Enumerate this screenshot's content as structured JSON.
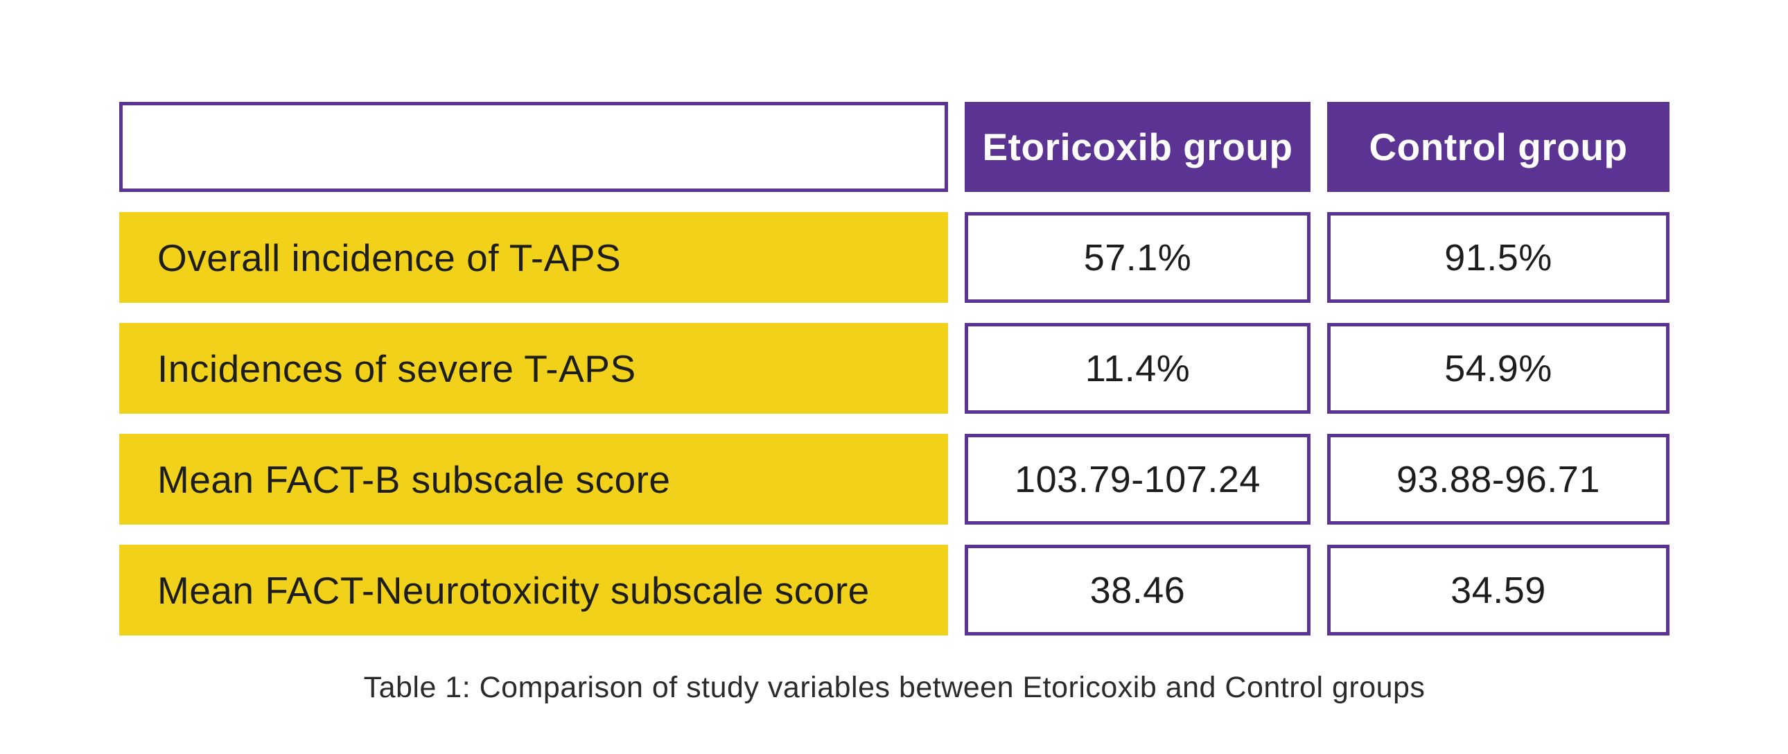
{
  "chart_data": {
    "type": "table",
    "title": "Table 1: Comparison of study variables between Etoricoxib and Control groups",
    "columns": [
      "",
      "Etoricoxib group",
      "Control group"
    ],
    "rows": [
      [
        "Overall incidence of T-APS",
        "57.1%",
        "91.5%"
      ],
      [
        "Incidences of severe T-APS",
        "11.4%",
        "54.9%"
      ],
      [
        "Mean FACT-B subscale score",
        "103.79-107.24",
        "93.88-96.71"
      ],
      [
        "Mean FACT-Neurotoxicity subscale score",
        "38.46",
        "34.59"
      ]
    ],
    "layout_hints": {
      "header_style": "white bold text on purple fill",
      "row_label_style": "black text on yellow fill, left aligned",
      "value_style": "black text in white box with purple border, centered",
      "caption_position": "centered below table"
    }
  },
  "header": {
    "corner": "",
    "etoricoxib": "Etoricoxib group",
    "control": "Control group"
  },
  "rows": [
    {
      "label": "Overall incidence of T-APS",
      "etoricoxib": "57.1%",
      "control": "91.5%"
    },
    {
      "label": "Incidences of severe T-APS",
      "etoricoxib": "11.4%",
      "control": "54.9%"
    },
    {
      "label": "Mean FACT-B subscale score",
      "etoricoxib": "103.79-107.24",
      "control": "93.88-96.71"
    },
    {
      "label": "Mean FACT-Neurotoxicity subscale score",
      "etoricoxib": "38.46",
      "control": "34.59"
    }
  ],
  "caption": "Table 1: Comparison of study variables between Etoricoxib and Control groups",
  "colors": {
    "purple": "#5B3392",
    "yellow": "#F2D11B",
    "header_text": "#FFFFFF",
    "body_text": "#1D1D1B",
    "caption_text": "#2B2B2B",
    "background": "#FFFFFF"
  }
}
